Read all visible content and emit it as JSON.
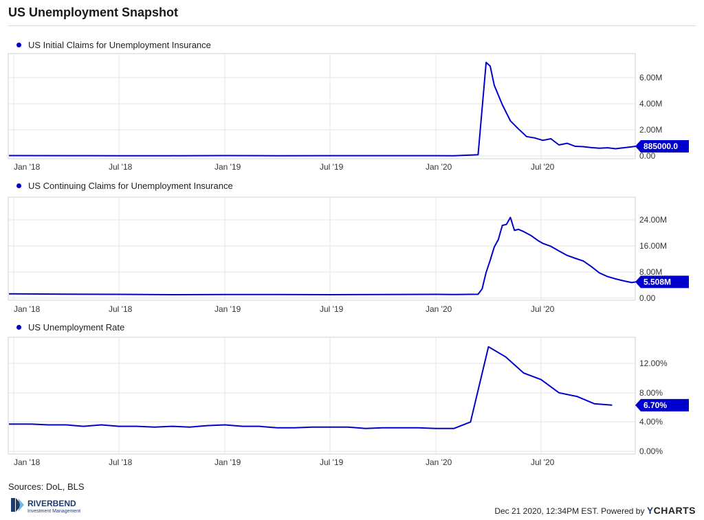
{
  "header": {
    "title": "US Unemployment Snapshot"
  },
  "colors": {
    "series": "#0000cc",
    "grid": "#e6e6e6",
    "frame": "#d0d0d0",
    "tag_bg": "#0000cc"
  },
  "chart_data": [
    {
      "type": "line",
      "legend": "US Initial Claims for Unemployment Insurance",
      "xlabel": "",
      "ylabel": "",
      "x_ticks": [
        "Jan '18",
        "Jul '18",
        "Jan '19",
        "Jul '19",
        "Jan '20",
        "Jul '20"
      ],
      "y_ticks": [
        "6.00M",
        "4.00M",
        "2.00M",
        "0.00"
      ],
      "ylim": [
        0,
        7500000
      ],
      "last_value_label": "885000.0",
      "series": [
        {
          "x": [
            "2018-01",
            "2018-04",
            "2018-07",
            "2018-10",
            "2019-01",
            "2019-04",
            "2019-07",
            "2019-10",
            "2020-01",
            "2020-02",
            "2020-03-14",
            "2020-03-28",
            "2020-04-04",
            "2020-04-11",
            "2020-04-25",
            "2020-05-09",
            "2020-05-23",
            "2020-06-06",
            "2020-06-20",
            "2020-07-04",
            "2020-07-18",
            "2020-08-01",
            "2020-08-15",
            "2020-08-29",
            "2020-09-12",
            "2020-09-26",
            "2020-10-10",
            "2020-10-24",
            "2020-11-07",
            "2020-11-21",
            "2020-12-05",
            "2020-12-12"
          ],
          "values": [
            220000,
            215000,
            210000,
            210000,
            220000,
            210000,
            215000,
            215000,
            215000,
            210000,
            280000,
            6870000,
            6610000,
            5240000,
            3850000,
            2700000,
            2120000,
            1580000,
            1480000,
            1310000,
            1420000,
            980000,
            1100000,
            880000,
            860000,
            790000,
            750000,
            780000,
            710000,
            780000,
            850000,
            885000
          ]
        }
      ]
    },
    {
      "type": "line",
      "legend": "US Continuing Claims for Unemployment Insurance",
      "xlabel": "",
      "ylabel": "",
      "x_ticks": [
        "Jan '18",
        "Jul '18",
        "Jan '19",
        "Jul '19",
        "Jan '20",
        "Jul '20"
      ],
      "y_ticks": [
        "24.00M",
        "16.00M",
        "8.00M",
        "0.00"
      ],
      "ylim": [
        0,
        31000000
      ],
      "last_value_label": "5.508M",
      "series": [
        {
          "x": [
            "2018-01",
            "2018-04",
            "2018-07",
            "2018-10",
            "2019-01",
            "2019-04",
            "2019-07",
            "2019-10",
            "2020-01",
            "2020-02",
            "2020-03-14",
            "2020-03-21",
            "2020-03-28",
            "2020-04-04",
            "2020-04-11",
            "2020-04-18",
            "2020-04-25",
            "2020-05-02",
            "2020-05-09",
            "2020-05-16",
            "2020-05-23",
            "2020-05-30",
            "2020-06-13",
            "2020-06-27",
            "2020-07-04",
            "2020-07-18",
            "2020-08-01",
            "2020-08-15",
            "2020-08-29",
            "2020-09-12",
            "2020-09-26",
            "2020-10-10",
            "2020-10-24",
            "2020-11-07",
            "2020-11-21",
            "2020-12-05",
            "2020-12-12"
          ],
          "values": [
            1900000,
            1800000,
            1750000,
            1650000,
            1700000,
            1700000,
            1650000,
            1700000,
            1750000,
            1700000,
            1780000,
            3400000,
            8400000,
            12000000,
            16000000,
            18200000,
            22500000,
            22800000,
            24900000,
            21000000,
            21300000,
            20800000,
            19500000,
            17800000,
            17100000,
            16200000,
            14800000,
            13500000,
            12600000,
            11800000,
            10100000,
            8200000,
            7100000,
            6400000,
            5800000,
            5300000,
            5508000
          ]
        }
      ]
    },
    {
      "type": "line",
      "legend": "US Unemployment Rate",
      "xlabel": "",
      "ylabel": "",
      "x_ticks": [
        "Jan '18",
        "Jul '18",
        "Jan '19",
        "Jul '19",
        "Jan '20",
        "Jul '20"
      ],
      "y_ticks": [
        "12.00%",
        "8.00%",
        "4.00%",
        "0.00%"
      ],
      "ylim": [
        0,
        16
      ],
      "last_value_label": "6.70%",
      "series": [
        {
          "x": [
            "2018-01",
            "2018-02",
            "2018-03",
            "2018-04",
            "2018-05",
            "2018-06",
            "2018-07",
            "2018-08",
            "2018-09",
            "2018-10",
            "2018-11",
            "2018-12",
            "2019-01",
            "2019-02",
            "2019-03",
            "2019-04",
            "2019-05",
            "2019-06",
            "2019-07",
            "2019-08",
            "2019-09",
            "2019-10",
            "2019-11",
            "2019-12",
            "2020-01",
            "2020-02",
            "2020-03",
            "2020-04",
            "2020-05",
            "2020-06",
            "2020-07",
            "2020-08",
            "2020-09",
            "2020-10",
            "2020-11"
          ],
          "values": [
            4.1,
            4.1,
            4.0,
            4.0,
            3.8,
            4.0,
            3.8,
            3.8,
            3.7,
            3.8,
            3.7,
            3.9,
            4.0,
            3.8,
            3.8,
            3.6,
            3.6,
            3.7,
            3.7,
            3.7,
            3.5,
            3.6,
            3.6,
            3.6,
            3.5,
            3.5,
            4.4,
            14.7,
            13.3,
            11.1,
            10.2,
            8.4,
            7.9,
            6.9,
            6.7
          ]
        }
      ]
    }
  ],
  "footer": {
    "sources": "Sources: DoL, BLS",
    "timestamp": "Dec 21 2020, 12:34PM EST. Powered by",
    "brand_y": "Y",
    "brand_rest": "CHARTS",
    "logo_name": "RIVERBEND",
    "logo_sub": "Investment Management"
  }
}
